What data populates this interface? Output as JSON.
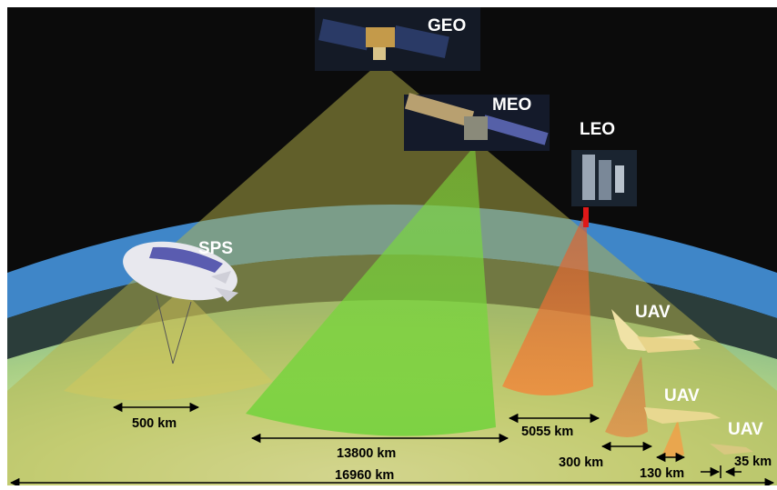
{
  "platforms": {
    "geo": "GEO",
    "meo": "MEO",
    "leo": "LEO",
    "sps": "SPS",
    "uav_1": "UAV",
    "uav_2": "UAV",
    "uav_3": "UAV"
  },
  "distances": {
    "sps": "500 km",
    "meo": "13800 km",
    "geo": "16960 km",
    "leo": "5055 km",
    "uav_1": "300 km",
    "uav_2": "130 km",
    "uav_3": "35 km"
  },
  "colors": {
    "space": "#0b0b0b",
    "atmosphere_band": "#3f86c8",
    "geo_beam": "#b8b44a",
    "meo_beam": "#7fd24a",
    "leo_beam": "#e07a3c",
    "uav_beam": "#e89a48",
    "earth": "#c9df8e"
  }
}
